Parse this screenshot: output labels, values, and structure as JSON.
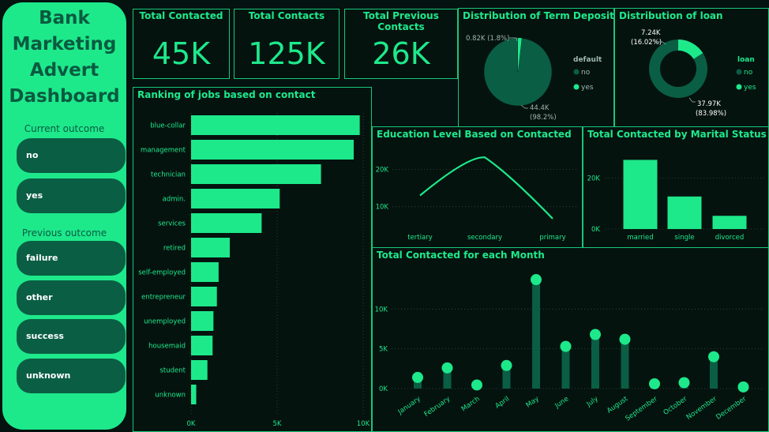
{
  "sidebar": {
    "title_lines": [
      "Bank",
      "Marketing",
      "Advert",
      "Dashboard"
    ],
    "current_outcome_label": "Current outcome",
    "current_outcome_options": [
      "no",
      "yes"
    ],
    "previous_outcome_label": "Previous outcome",
    "previous_outcome_options": [
      "failure",
      "other",
      "success",
      "unknown"
    ]
  },
  "kpis": [
    {
      "label": "Total Contacted",
      "value": "45K"
    },
    {
      "label": "Total Contacts",
      "value": "125K"
    },
    {
      "label": "Total Previous Contacts",
      "value": "26K"
    }
  ],
  "colors": {
    "accent": "#1de98b",
    "dark_accent": "#0a5e44",
    "background": "#041210"
  },
  "chart_data": [
    {
      "id": "term_deposit",
      "type": "pie",
      "title": "Distribution of Term Deposit",
      "legend_title": "default",
      "legend_position": "right",
      "slices": [
        {
          "name": "no",
          "value": 44.4,
          "label": "44.4K",
          "pct_label": "(98.2%)",
          "color": "#0a5e44"
        },
        {
          "name": "yes",
          "value": 0.82,
          "label": "0.82K (1.8%)",
          "color": "#1de98b"
        }
      ]
    },
    {
      "id": "loan",
      "type": "pie",
      "donut": true,
      "title": "Distribution of loan",
      "legend_title": "loan",
      "legend_position": "right",
      "slices": [
        {
          "name": "no",
          "value": 37.97,
          "label": "37.97K",
          "pct_label": "(83.98%)",
          "color": "#0a5e44"
        },
        {
          "name": "yes",
          "value": 7.24,
          "label": "7.24K",
          "pct_label": "(16.02%)",
          "color": "#1de98b"
        }
      ]
    },
    {
      "id": "jobs",
      "type": "bar",
      "orientation": "horizontal",
      "title": "Ranking of jobs based on contact",
      "categories": [
        "blue-collar",
        "management",
        "technician",
        "admin.",
        "services",
        "retired",
        "self-employed",
        "entrepreneur",
        "unemployed",
        "housemaid",
        "student",
        "unknown"
      ],
      "values": [
        9800,
        9450,
        7550,
        5150,
        4100,
        2250,
        1600,
        1500,
        1300,
        1250,
        950,
        300
      ],
      "xlim": [
        0,
        10000
      ],
      "ticks": [
        {
          "v": 0,
          "t": "0K"
        },
        {
          "v": 5000,
          "t": "5K"
        },
        {
          "v": 10000,
          "t": "10K"
        }
      ]
    },
    {
      "id": "education",
      "type": "line",
      "title": "Education Level Based on Contacted",
      "categories": [
        "tertiary",
        "secondary",
        "primary"
      ],
      "values": [
        13000,
        23200,
        6800
      ],
      "ylim": [
        0,
        26000
      ],
      "ticks": [
        {
          "v": 10000,
          "t": "10K"
        },
        {
          "v": 20000,
          "t": "20K"
        }
      ]
    },
    {
      "id": "marital",
      "type": "bar",
      "title": "Total Contacted by Marital Status",
      "categories": [
        "married",
        "single",
        "divorced"
      ],
      "values": [
        27200,
        12800,
        5200
      ],
      "ylim": [
        0,
        32000
      ],
      "ticks": [
        {
          "v": 0,
          "t": "0K"
        },
        {
          "v": 20000,
          "t": "20K"
        }
      ]
    },
    {
      "id": "month",
      "type": "bar",
      "style": "lollipop",
      "title": "Total Contacted for each Month",
      "categories": [
        "January",
        "February",
        "March",
        "April",
        "May",
        "June",
        "July",
        "August",
        "September",
        "October",
        "November",
        "December"
      ],
      "values": [
        1400,
        2600,
        450,
        2900,
        13700,
        5300,
        6800,
        6200,
        600,
        750,
        4000,
        200
      ],
      "ylim": [
        0,
        14500
      ],
      "ticks": [
        {
          "v": 0,
          "t": "0K"
        },
        {
          "v": 5000,
          "t": "5K"
        },
        {
          "v": 10000,
          "t": "10K"
        }
      ]
    }
  ]
}
